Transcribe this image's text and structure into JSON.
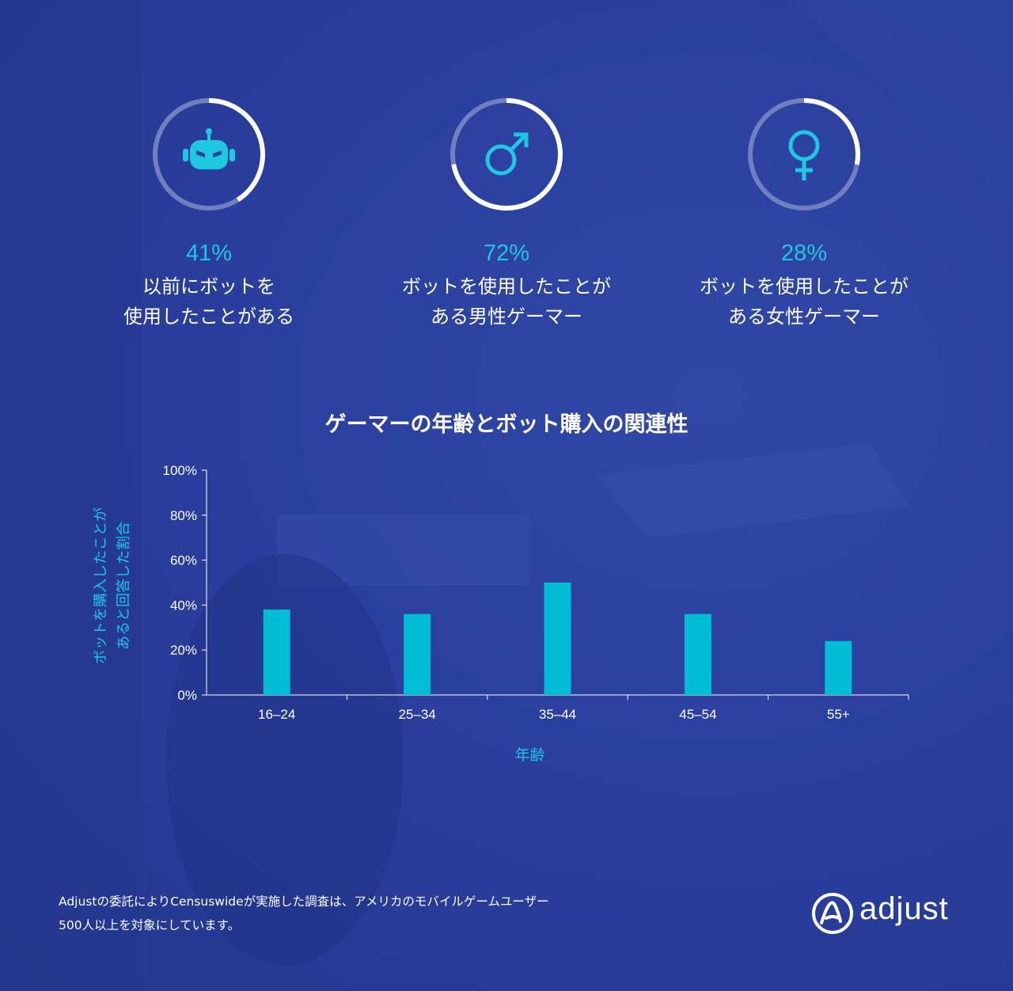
{
  "stats": [
    {
      "icon": "robot-icon",
      "percent_label": "41%",
      "fraction": 0.41,
      "caption": "以前にボットを\n使用したことがある"
    },
    {
      "icon": "male-icon",
      "percent_label": "72%",
      "fraction": 0.72,
      "caption": "ボットを使用したことが\nある男性ゲーマー"
    },
    {
      "icon": "female-icon",
      "percent_label": "28%",
      "fraction": 0.28,
      "caption": "ボットを使用したことが\nある女性ゲーマー"
    }
  ],
  "colors": {
    "accent": "#1ec8e0",
    "bar": "#00bcd4",
    "ring_track": "#6f7fc0",
    "ring_fill": "#ffffff",
    "background": "#2a3f9e"
  },
  "chart_data": {
    "type": "bar",
    "title": "ゲーマーの年齢とボット購入の関連性",
    "categories": [
      "16–24",
      "25–34",
      "35–44",
      "45–54",
      "55+"
    ],
    "values": [
      38,
      36,
      50,
      36,
      24
    ],
    "xlabel": "年齢",
    "ylabel_lines": [
      "ボットを購入したことが",
      "あると回答した割合"
    ],
    "ylim": [
      0,
      100
    ],
    "yticks": [
      0,
      20,
      40,
      60,
      80,
      100
    ],
    "ytick_labels": [
      "0%",
      "20%",
      "40%",
      "60%",
      "80%",
      "100%"
    ],
    "grid": false
  },
  "footnote": {
    "line1": "Adjustの委託によりCensuswideが実施した調査は、アメリカのモバイルゲームユーザー",
    "line2": "500人以上を対象にしています。"
  },
  "logo": {
    "text": "adjust"
  }
}
